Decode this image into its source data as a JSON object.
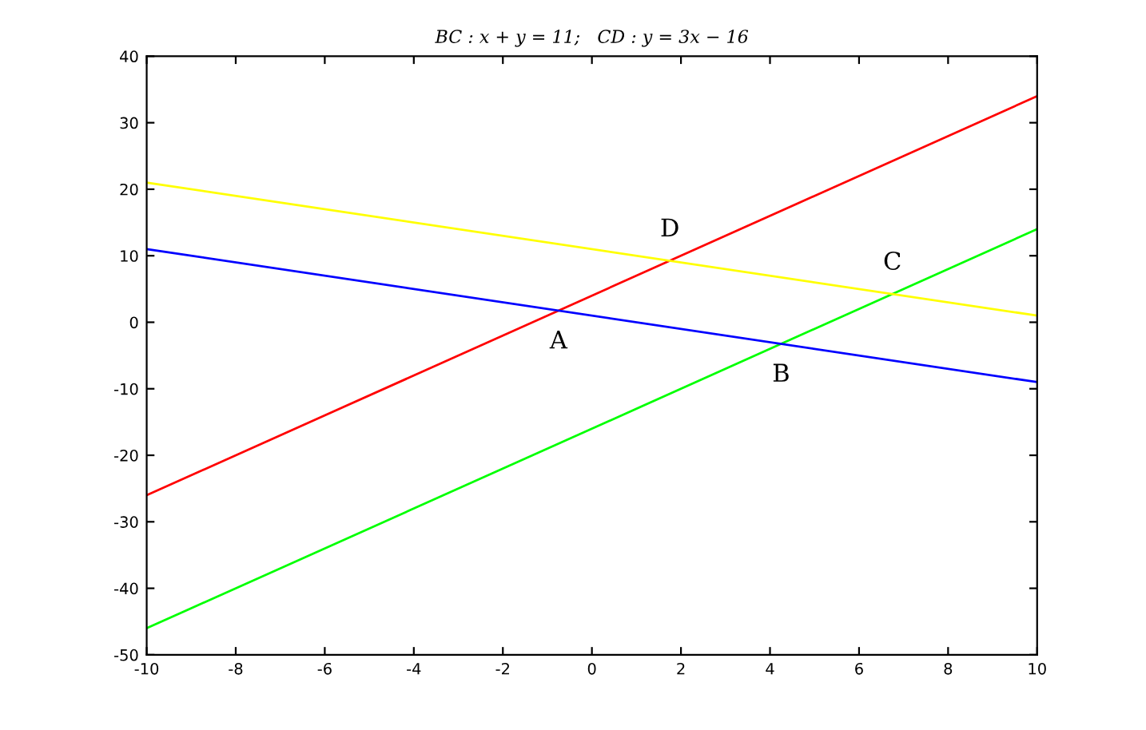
{
  "chart_data": {
    "type": "line",
    "title": "BC : x + y = 11;   CD : y = 3x − 16",
    "x": [
      -10,
      10
    ],
    "series": [
      {
        "color": "#ff0000",
        "values": [
          -26,
          34
        ]
      },
      {
        "color": "#00ff00",
        "values": [
          -46,
          14
        ]
      },
      {
        "color": "#0000ff",
        "values": [
          11,
          -9
        ]
      },
      {
        "color": "#ffff00",
        "values": [
          21,
          1
        ]
      }
    ],
    "annotations": [
      {
        "text": "A",
        "x": -0.75,
        "y": 1.75
      },
      {
        "text": "B",
        "x": 4.25,
        "y": -3.25
      },
      {
        "text": "C",
        "x": 6.75,
        "y": 4.25
      },
      {
        "text": "D",
        "x": 1.75,
        "y": 9.25
      }
    ],
    "xlim": [
      -10,
      10
    ],
    "ylim": [
      -50,
      40
    ],
    "xticks": [
      -10,
      -8,
      -6,
      -4,
      -2,
      0,
      2,
      4,
      6,
      8,
      10
    ],
    "yticks": [
      -50,
      -40,
      -30,
      -20,
      -10,
      0,
      10,
      20,
      30,
      40
    ],
    "grid": false,
    "legend": false,
    "marker": "none",
    "line_style": "solid"
  }
}
